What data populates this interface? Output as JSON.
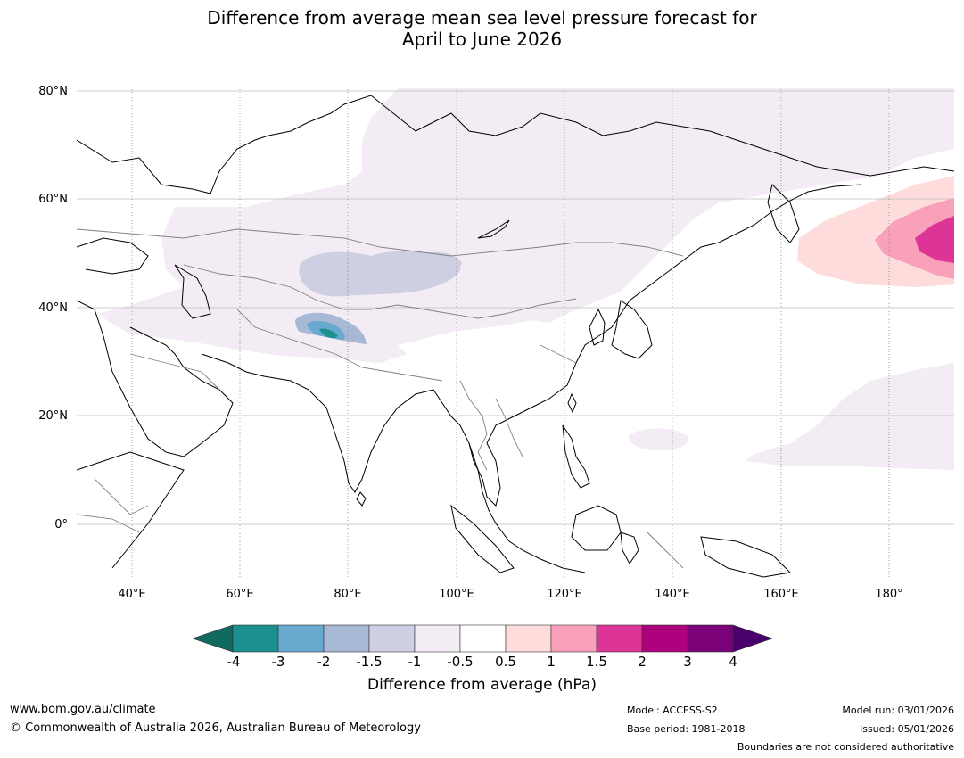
{
  "title": {
    "line1": "Difference from average mean sea level pressure forecast for",
    "line2": "April to June 2026"
  },
  "map": {
    "lat_labels": [
      "80°N",
      "60°N",
      "40°N",
      "20°N",
      "0°"
    ],
    "lon_labels": [
      "40°E",
      "60°E",
      "80°E",
      "100°E",
      "120°E",
      "140°E",
      "160°E",
      "180°"
    ],
    "anomaly_regions": [
      {
        "name": "siberia-weak-low",
        "level": "-0.5 to -1"
      },
      {
        "name": "central-asia-low",
        "level": "-1.5 to -2"
      },
      {
        "name": "tibet-strong-low",
        "level": "-2 to -3"
      },
      {
        "name": "north-pacific-high",
        "level": "0.5 to 1.5+"
      },
      {
        "name": "west-pacific-weak-low",
        "level": "-0.5 to -1"
      }
    ]
  },
  "colorbar": {
    "labels": [
      "-4",
      "-3",
      "-2",
      "-1.5",
      "-1",
      "-0.5",
      "0.5",
      "1",
      "1.5",
      "2",
      "3",
      "4"
    ],
    "colors": [
      "#0f6b5f",
      "#1a9090",
      "#67a9cf",
      "#a8b9d6",
      "#cfcfe3",
      "#f3ecf5",
      "#ffffff",
      "#fedcdc",
      "#f9a0bb",
      "#dd3497",
      "#ae017e",
      "#7a0177",
      "#49006a"
    ],
    "title": "Difference from average (hPa)"
  },
  "footer": {
    "website": "www.bom.gov.au/climate",
    "copyright": "© Commonwealth of Australia 2026, Australian Bureau of Meteorology",
    "model": "Model: ACCESS-S2",
    "base_period": "Base period: 1981-2018",
    "model_run": "Model run: 03/01/2026",
    "issued": "Issued: 05/01/2026",
    "disclaimer": "Boundaries are not considered authoritative"
  }
}
